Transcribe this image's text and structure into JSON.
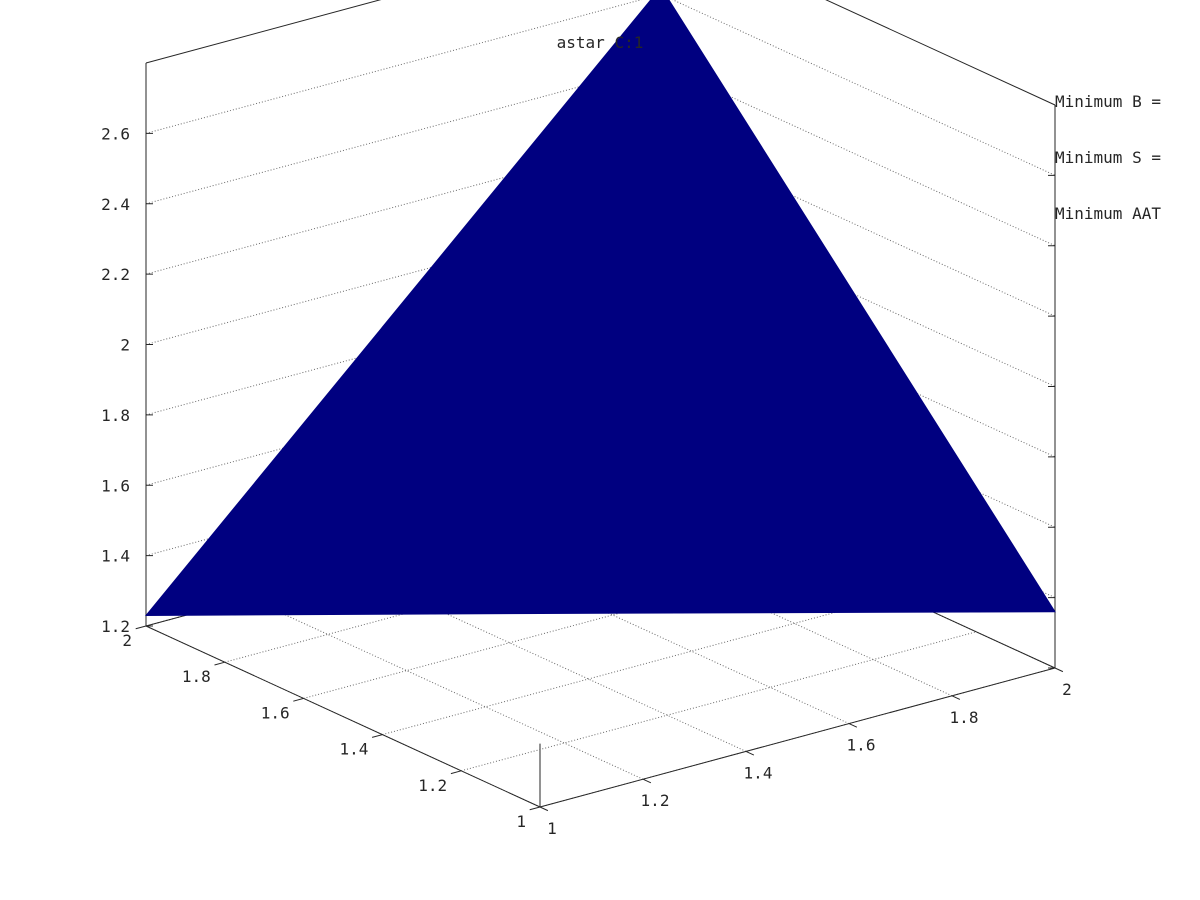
{
  "chart_data": {
    "type": "surface",
    "title": "astar C:1",
    "x_ticks": [
      "1",
      "1.2",
      "1.4",
      "1.6",
      "1.8",
      "2"
    ],
    "y_ticks": [
      "1",
      "1.2",
      "1.4",
      "1.6",
      "1.8",
      "2"
    ],
    "z_ticks": [
      "1.2",
      "1.4",
      "1.6",
      "1.8",
      "2",
      "2.2",
      "2.4",
      "2.6"
    ],
    "xlim": [
      1,
      2
    ],
    "ylim": [
      1,
      2
    ],
    "zlim": [
      1.2,
      2.8
    ],
    "grid": true,
    "surface_color": "#000080",
    "points": [
      {
        "x": 1,
        "y": 1,
        "z": 1.75
      },
      {
        "x": 2,
        "y": 1,
        "z": 1.36
      },
      {
        "x": 1,
        "y": 2,
        "z": 1.23
      },
      {
        "x": 2,
        "y": 2,
        "z": 2.62
      }
    ],
    "annotations": [
      "Minimum B =",
      "Minimum S =",
      "Minimum AAT"
    ]
  }
}
